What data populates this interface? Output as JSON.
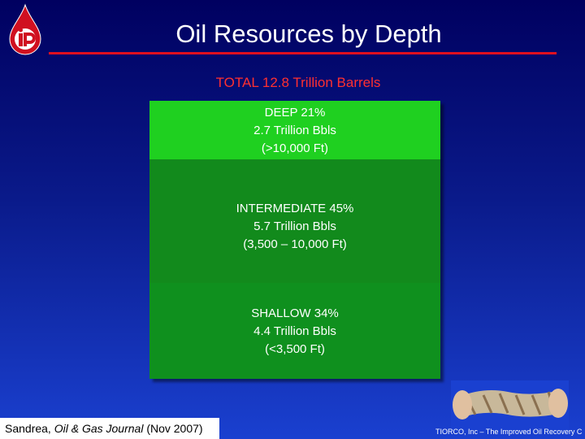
{
  "header": {
    "title": "Oil Resources by Depth",
    "subtitle": "TOTAL 12.8 Trillion Barrels"
  },
  "segments": [
    {
      "lines": [
        "DEEP 21%",
        "2.7 Trillion Bbls",
        "(>10,000 Ft)"
      ]
    },
    {
      "lines": [
        "INTERMEDIATE 45%",
        "5.7 Trillion Bbls",
        "(3,500 – 10,000 Ft)"
      ]
    },
    {
      "lines": [
        "SHALLOW 34%",
        "4.4 Trillion Bbls",
        "(<3,500 Ft)"
      ]
    }
  ],
  "source": {
    "author": "Sandrea, ",
    "journal": "Oil & Gas Journal",
    "date": " (Nov 2007)"
  },
  "footer": "TIORCO, Inc – The Improved Oil Recovery C"
}
